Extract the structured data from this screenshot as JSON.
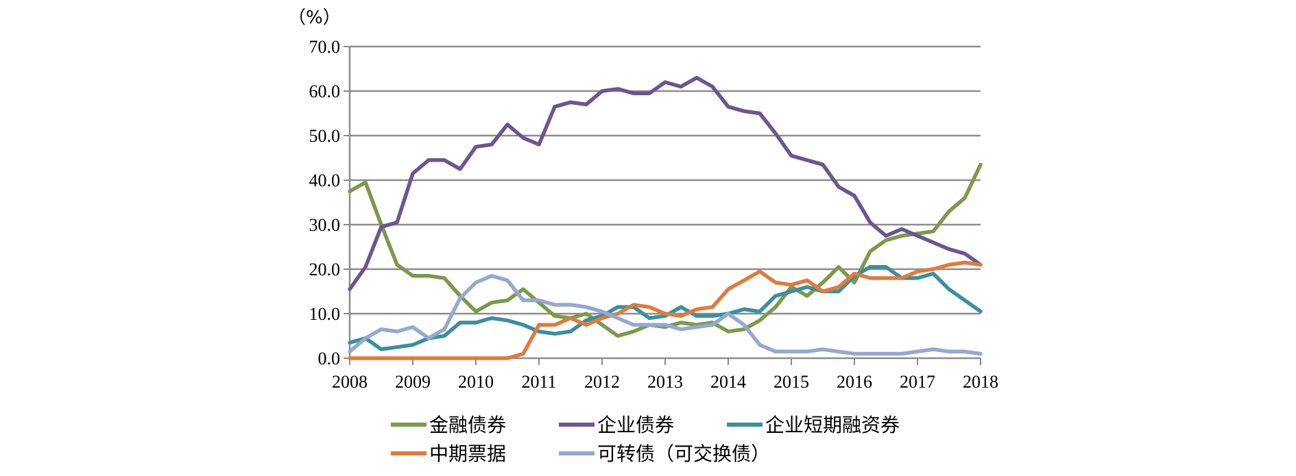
{
  "chart_data": {
    "type": "line",
    "unit_label": "（%）",
    "ylim": [
      0,
      70
    ],
    "yticks": [
      "0.0",
      "10.0",
      "20.0",
      "30.0",
      "40.0",
      "50.0",
      "60.0",
      "70.0"
    ],
    "xlim": [
      2008,
      2018
    ],
    "xticks": [
      "2008",
      "2009",
      "2010",
      "2011",
      "2012",
      "2013",
      "2014",
      "2015",
      "2016",
      "2017",
      "2018"
    ],
    "grid": "horizontal",
    "legend_position": "bottom",
    "x": [
      2008.0,
      2008.25,
      2008.5,
      2008.75,
      2009.0,
      2009.25,
      2009.5,
      2009.75,
      2010.0,
      2010.25,
      2010.5,
      2010.75,
      2011.0,
      2011.25,
      2011.5,
      2011.75,
      2012.0,
      2012.25,
      2012.5,
      2012.75,
      2013.0,
      2013.25,
      2013.5,
      2013.75,
      2014.0,
      2014.25,
      2014.5,
      2014.75,
      2015.0,
      2015.25,
      2015.5,
      2015.75,
      2016.0,
      2016.25,
      2016.5,
      2016.75,
      2017.0,
      2017.25,
      2017.5,
      2017.75,
      2018.0
    ],
    "series": [
      {
        "name": "金融债券",
        "color": "#7a9b4a",
        "values": [
          37.5,
          39.5,
          30.0,
          21.0,
          18.5,
          18.5,
          18.0,
          14.0,
          10.5,
          12.5,
          13.0,
          15.5,
          12.5,
          9.5,
          9.0,
          10.0,
          7.5,
          5.0,
          6.0,
          7.5,
          7.0,
          8.0,
          7.5,
          8.0,
          6.0,
          6.5,
          8.5,
          11.5,
          16.0,
          14.0,
          17.0,
          20.5,
          17.0,
          24.0,
          26.5,
          27.5,
          28.0,
          28.5,
          33.0,
          36.0,
          43.5
        ]
      },
      {
        "name": "企业债券",
        "color": "#6d5590",
        "values": [
          15.5,
          20.5,
          29.5,
          30.5,
          41.5,
          44.5,
          44.5,
          42.5,
          47.5,
          48.0,
          52.5,
          49.5,
          48.0,
          56.5,
          57.5,
          57.0,
          60.0,
          60.5,
          59.5,
          59.5,
          62.0,
          61.0,
          63.0,
          61.0,
          56.5,
          55.5,
          55.0,
          50.5,
          45.5,
          44.5,
          43.5,
          38.5,
          36.5,
          30.5,
          27.5,
          29.0,
          27.5,
          26.0,
          24.5,
          23.5,
          21.0
        ]
      },
      {
        "name": "企业短期融资券",
        "color": "#3a8fa0",
        "values": [
          3.5,
          4.5,
          2.0,
          2.5,
          3.0,
          4.5,
          5.0,
          8.0,
          8.0,
          9.0,
          8.5,
          7.5,
          6.0,
          5.5,
          6.0,
          8.5,
          9.5,
          11.5,
          11.5,
          9.0,
          9.5,
          11.5,
          9.5,
          9.5,
          10.0,
          11.0,
          10.5,
          14.0,
          15.0,
          16.0,
          15.0,
          15.0,
          18.5,
          20.5,
          20.5,
          18.0,
          18.0,
          19.0,
          15.5,
          13.0,
          10.5
        ]
      },
      {
        "name": "中期票据",
        "color": "#e07b3c",
        "values": [
          0.0,
          0.0,
          0.0,
          0.0,
          0.0,
          0.0,
          0.0,
          0.0,
          0.0,
          0.0,
          0.0,
          1.0,
          7.5,
          7.5,
          9.0,
          7.5,
          9.0,
          10.0,
          12.0,
          11.5,
          10.0,
          9.5,
          11.0,
          11.5,
          15.5,
          17.5,
          19.5,
          17.0,
          16.5,
          17.5,
          15.0,
          16.0,
          19.0,
          18.0,
          18.0,
          18.0,
          19.5,
          20.0,
          21.0,
          21.5,
          21.0
        ]
      },
      {
        "name": "可转债（可交换债）",
        "color": "#93a9cf",
        "values": [
          1.5,
          4.5,
          6.5,
          6.0,
          7.0,
          4.5,
          6.5,
          13.5,
          17.0,
          18.5,
          17.5,
          13.0,
          13.0,
          12.0,
          12.0,
          11.5,
          10.5,
          9.0,
          7.5,
          7.5,
          7.5,
          6.5,
          7.0,
          7.5,
          10.0,
          7.5,
          3.0,
          1.5,
          1.5,
          1.5,
          2.0,
          1.5,
          1.0,
          1.0,
          1.0,
          1.0,
          1.5,
          2.0,
          1.5,
          1.5,
          1.0
        ]
      }
    ]
  }
}
